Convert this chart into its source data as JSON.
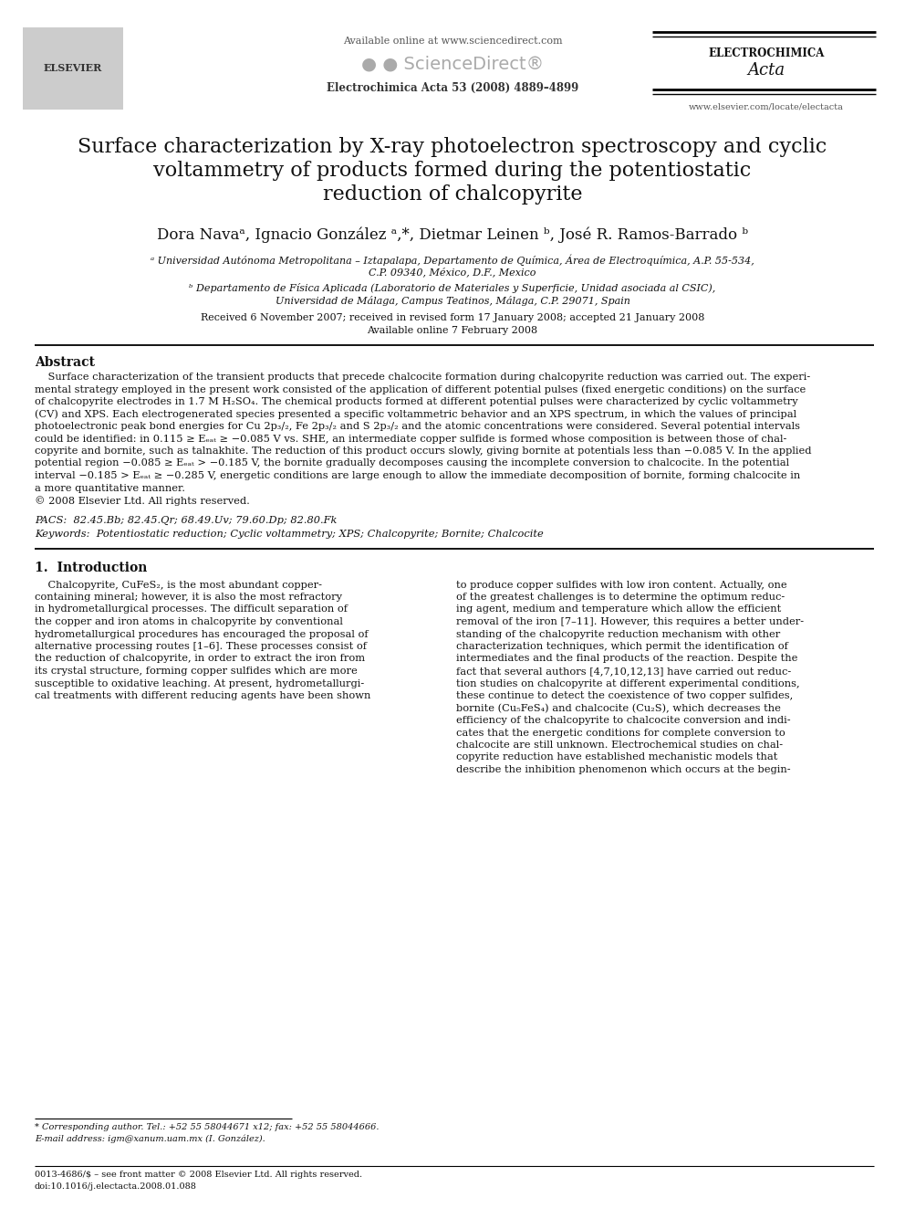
{
  "bg_color": "#ffffff",
  "header": {
    "available_online": "Available online at www.sciencedirect.com",
    "journal_info": "Electrochimica Acta 53 (2008) 4889–4899",
    "journal_name": "ELECTROCHIMICA",
    "journal_italic": "Acta",
    "website": "www.elsevier.com/locate/electacta"
  },
  "title_line1": "Surface characterization by X-ray photoelectron spectroscopy and cyclic",
  "title_line2": "voltammetry of products formed during the potentiostatic",
  "title_line3": "reduction of chalcopyrite",
  "authors_text": "Dora Navaᵃ, Ignacio González ᵃ,*, Dietmar Leinen ᵇ, José R. Ramos-Barrado ᵇ",
  "affil_a": "ᵃ Universidad Autónoma Metropolitana – Iztapalapa, Departamento de Química, Área de Electroquímica, A.P. 55-534,",
  "affil_a2": "C.P. 09340, México, D.F., Mexico",
  "affil_b": "ᵇ Departamento de Física Aplicada (Laboratorio de Materiales y Superficie, Unidad asociada al CSIC),",
  "affil_b2": "Universidad de Málaga, Campus Teatinos, Málaga, C.P. 29071, Spain",
  "received1": "Received 6 November 2007; received in revised form 17 January 2008; accepted 21 January 2008",
  "received2": "Available online 7 February 2008",
  "abstract_title": "Abstract",
  "pacs": "PACS:  82.45.Bb; 82.45.Qr; 68.49.Uv; 79.60.Dp; 82.80.Fk",
  "keywords": "Keywords:  Potentiostatic reduction; Cyclic voltammetry; XPS; Chalcopyrite; Bornite; Chalcocite",
  "section1_title": "1.  Introduction",
  "footnote1": "* Corresponding author. Tel.: +52 55 58044671 x12; fax: +52 55 58044666.",
  "footnote2": "E-mail address: igm@xanum.uam.mx (I. González).",
  "footer1": "0013-4686/$ – see front matter © 2008 Elsevier Ltd. All rights reserved.",
  "footer2": "doi:10.1016/j.electacta.2008.01.088"
}
